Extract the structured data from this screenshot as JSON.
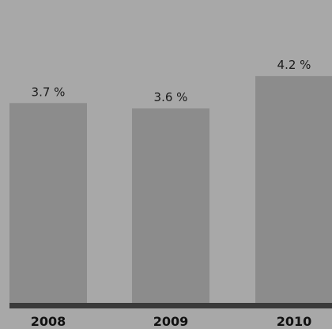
{
  "chart_data": {
    "type": "bar",
    "categories": [
      "2008",
      "2009",
      "2010"
    ],
    "values": [
      3.7,
      3.6,
      4.2
    ],
    "value_labels": [
      "3.7 %",
      "3.6 %",
      "4.2 %"
    ],
    "title": "",
    "xlabel": "",
    "ylabel": "",
    "ylim": [
      0,
      4.4
    ],
    "grid": false,
    "legend": "none"
  },
  "colors": {
    "background": "#a8a8a8",
    "bar": "#8c8c8c",
    "axis": "#3a3a3a"
  }
}
